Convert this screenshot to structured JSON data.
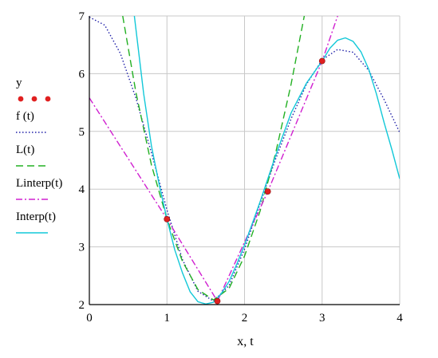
{
  "chart_data": {
    "type": "line",
    "xlabel": "x, t",
    "ylabel": "",
    "xlim": [
      0,
      4
    ],
    "ylim": [
      2,
      7
    ],
    "x_ticks": [
      0,
      1,
      2,
      3,
      4
    ],
    "y_ticks": [
      2,
      3,
      4,
      5,
      6,
      7
    ],
    "grid": true,
    "legend_position": "left",
    "series": [
      {
        "name": "y",
        "style": "points",
        "color": "#e02020",
        "x": [
          1.0,
          1.65,
          2.3,
          3.0
        ],
        "y": [
          3.48,
          2.06,
          3.96,
          6.22
        ]
      },
      {
        "name": "f (t)",
        "style": "dotted",
        "color": "#1f1fa8",
        "x": [
          0.0,
          0.2,
          0.4,
          0.6,
          0.8,
          1.0,
          1.2,
          1.4,
          1.6,
          1.8,
          2.0,
          2.2,
          2.4,
          2.6,
          2.8,
          3.0,
          3.2,
          3.4,
          3.6,
          3.8,
          4.0
        ],
        "y": [
          6.98,
          6.84,
          6.35,
          5.58,
          4.63,
          3.64,
          2.78,
          2.23,
          2.06,
          2.33,
          2.96,
          3.75,
          4.52,
          5.22,
          5.82,
          6.24,
          6.42,
          6.37,
          6.06,
          5.55,
          4.98
        ]
      },
      {
        "name": "L(t)",
        "style": "dashed",
        "color": "#22b022",
        "x": [
          0.43,
          0.6,
          0.8,
          1.0,
          1.2,
          1.4,
          1.6,
          1.8,
          2.0,
          2.2,
          2.4,
          2.6,
          2.77
        ],
        "y": [
          7.0,
          5.68,
          4.42,
          3.48,
          2.75,
          2.26,
          2.08,
          2.28,
          2.84,
          3.62,
          4.62,
          5.82,
          7.0
        ]
      },
      {
        "name": "Linterp(t)",
        "style": "dash-dot",
        "color": "#d020d0",
        "x": [
          0.0,
          1.0,
          1.65,
          2.3,
          3.0,
          3.2
        ],
        "y": [
          5.58,
          3.48,
          2.06,
          3.96,
          6.22,
          7.0
        ]
      },
      {
        "name": "Interp(t)",
        "style": "solid",
        "color": "#12c8d8",
        "x": [
          0.58,
          0.7,
          0.8,
          0.9,
          1.0,
          1.1,
          1.2,
          1.3,
          1.4,
          1.5,
          1.6,
          1.7,
          1.8,
          1.9,
          2.0,
          2.2,
          2.4,
          2.6,
          2.8,
          3.0,
          3.1,
          3.2,
          3.3,
          3.4,
          3.5,
          3.6,
          3.7,
          3.8,
          3.9,
          4.0
        ],
        "y": [
          7.0,
          5.65,
          4.75,
          4.08,
          3.48,
          2.95,
          2.55,
          2.22,
          2.05,
          2.01,
          2.04,
          2.19,
          2.4,
          2.7,
          3.03,
          3.78,
          4.58,
          5.32,
          5.84,
          6.22,
          6.44,
          6.58,
          6.62,
          6.56,
          6.38,
          6.08,
          5.65,
          5.15,
          4.68,
          4.18
        ]
      }
    ]
  }
}
